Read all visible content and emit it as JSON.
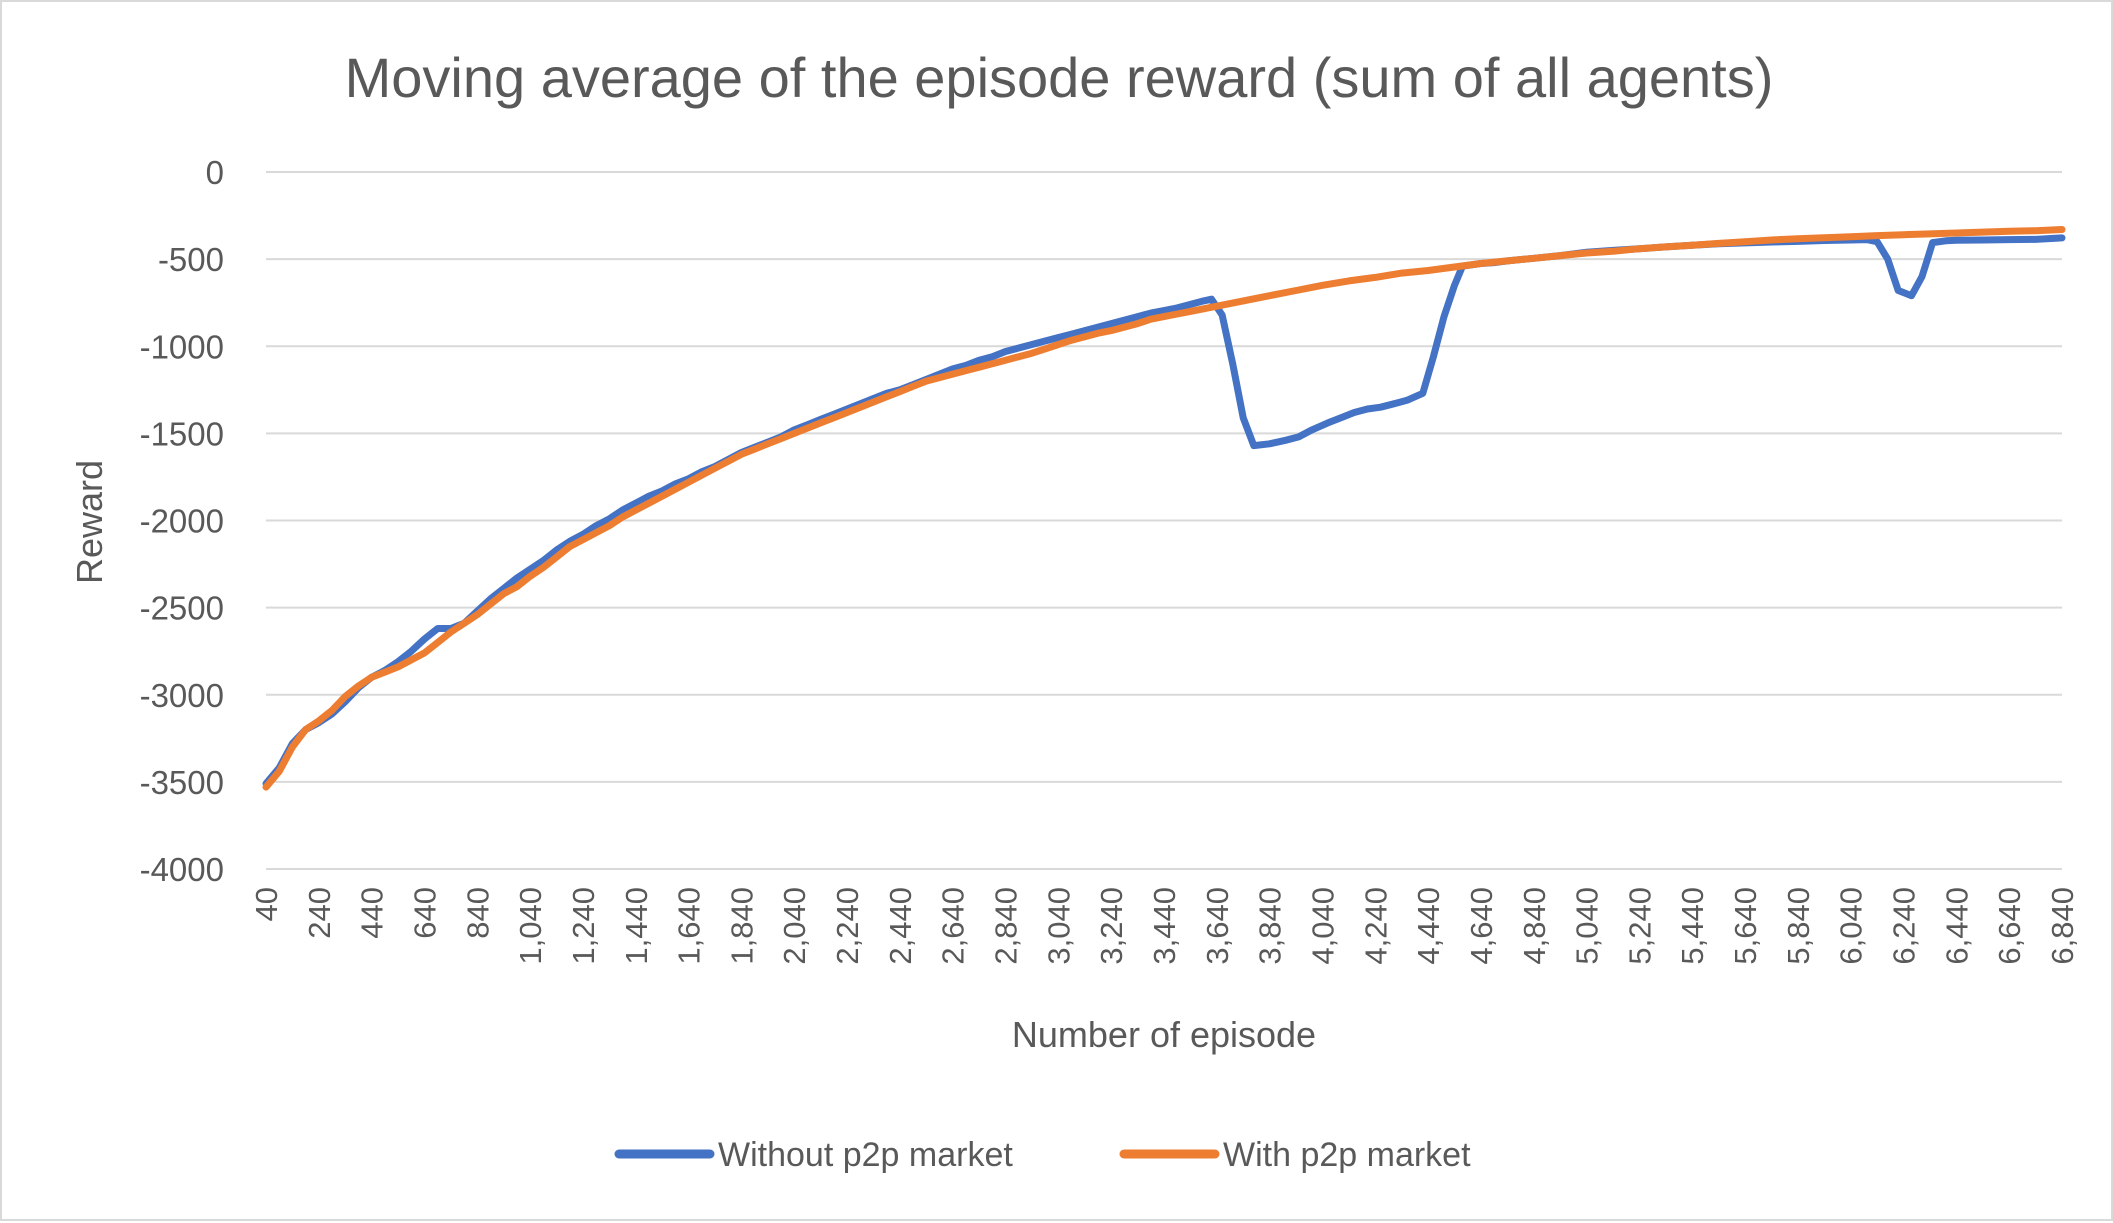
{
  "chart_data": {
    "type": "line",
    "title": "Moving average of the episode reward (sum of all agents)",
    "xlabel": "Number of episode",
    "ylabel": "Reward",
    "ylim": [
      -4000,
      0
    ],
    "yticks": [
      0,
      -500,
      -1000,
      -1500,
      -2000,
      -2500,
      -3000,
      -3500,
      -4000
    ],
    "grid": true,
    "legend_position": "bottom",
    "x_tick_labels": [
      "40",
      "240",
      "440",
      "640",
      "840",
      "1,040",
      "1,240",
      "1,440",
      "1,640",
      "1,840",
      "2,040",
      "2,240",
      "2,440",
      "2,640",
      "2,840",
      "3,040",
      "3,240",
      "3,440",
      "3,640",
      "3,840",
      "4,040",
      "4,240",
      "4,440",
      "4,640",
      "4,840",
      "5,040",
      "5,240",
      "5,440",
      "5,640",
      "5,840",
      "6,040",
      "6,240",
      "6,440",
      "6,640",
      "6,840"
    ],
    "xlim": [
      40,
      6840
    ],
    "series": [
      {
        "name": "Without p2p market",
        "color": "#4472c4",
        "points": [
          [
            40,
            -3510
          ],
          [
            90,
            -3420
          ],
          [
            140,
            -3280
          ],
          [
            190,
            -3200
          ],
          [
            240,
            -3160
          ],
          [
            290,
            -3110
          ],
          [
            340,
            -3040
          ],
          [
            390,
            -2960
          ],
          [
            440,
            -2900
          ],
          [
            490,
            -2860
          ],
          [
            540,
            -2810
          ],
          [
            590,
            -2750
          ],
          [
            640,
            -2680
          ],
          [
            690,
            -2620
          ],
          [
            740,
            -2620
          ],
          [
            790,
            -2590
          ],
          [
            840,
            -2520
          ],
          [
            890,
            -2450
          ],
          [
            940,
            -2390
          ],
          [
            990,
            -2330
          ],
          [
            1040,
            -2280
          ],
          [
            1090,
            -2230
          ],
          [
            1140,
            -2170
          ],
          [
            1190,
            -2120
          ],
          [
            1240,
            -2080
          ],
          [
            1290,
            -2030
          ],
          [
            1340,
            -1990
          ],
          [
            1390,
            -1940
          ],
          [
            1440,
            -1900
          ],
          [
            1490,
            -1860
          ],
          [
            1540,
            -1830
          ],
          [
            1590,
            -1790
          ],
          [
            1640,
            -1760
          ],
          [
            1690,
            -1720
          ],
          [
            1740,
            -1690
          ],
          [
            1790,
            -1650
          ],
          [
            1840,
            -1610
          ],
          [
            1890,
            -1580
          ],
          [
            1940,
            -1550
          ],
          [
            1990,
            -1520
          ],
          [
            2040,
            -1480
          ],
          [
            2090,
            -1450
          ],
          [
            2140,
            -1420
          ],
          [
            2190,
            -1390
          ],
          [
            2240,
            -1360
          ],
          [
            2290,
            -1330
          ],
          [
            2340,
            -1300
          ],
          [
            2390,
            -1270
          ],
          [
            2440,
            -1250
          ],
          [
            2490,
            -1220
          ],
          [
            2540,
            -1190
          ],
          [
            2590,
            -1160
          ],
          [
            2640,
            -1130
          ],
          [
            2690,
            -1110
          ],
          [
            2740,
            -1080
          ],
          [
            2790,
            -1060
          ],
          [
            2840,
            -1030
          ],
          [
            2890,
            -1010
          ],
          [
            2940,
            -990
          ],
          [
            2990,
            -970
          ],
          [
            3040,
            -950
          ],
          [
            3090,
            -930
          ],
          [
            3140,
            -910
          ],
          [
            3190,
            -890
          ],
          [
            3240,
            -870
          ],
          [
            3290,
            -850
          ],
          [
            3340,
            -830
          ],
          [
            3390,
            -810
          ],
          [
            3440,
            -795
          ],
          [
            3490,
            -780
          ],
          [
            3540,
            -760
          ],
          [
            3590,
            -740
          ],
          [
            3620,
            -730
          ],
          [
            3660,
            -820
          ],
          [
            3700,
            -1100
          ],
          [
            3740,
            -1410
          ],
          [
            3780,
            -1570
          ],
          [
            3840,
            -1560
          ],
          [
            3900,
            -1540
          ],
          [
            3950,
            -1520
          ],
          [
            4000,
            -1480
          ],
          [
            4060,
            -1440
          ],
          [
            4110,
            -1410
          ],
          [
            4160,
            -1380
          ],
          [
            4210,
            -1360
          ],
          [
            4260,
            -1350
          ],
          [
            4310,
            -1330
          ],
          [
            4360,
            -1310
          ],
          [
            4420,
            -1270
          ],
          [
            4460,
            -1060
          ],
          [
            4500,
            -830
          ],
          [
            4540,
            -650
          ],
          [
            4570,
            -540
          ],
          [
            4640,
            -525
          ],
          [
            4690,
            -520
          ],
          [
            4740,
            -510
          ],
          [
            4840,
            -495
          ],
          [
            4940,
            -480
          ],
          [
            5040,
            -460
          ],
          [
            5140,
            -450
          ],
          [
            5240,
            -440
          ],
          [
            5340,
            -430
          ],
          [
            5440,
            -420
          ],
          [
            5540,
            -412
          ],
          [
            5640,
            -407
          ],
          [
            5740,
            -402
          ],
          [
            5840,
            -398
          ],
          [
            5940,
            -393
          ],
          [
            6040,
            -390
          ],
          [
            6100,
            -388
          ],
          [
            6140,
            -400
          ],
          [
            6180,
            -500
          ],
          [
            6220,
            -680
          ],
          [
            6270,
            -710
          ],
          [
            6310,
            -600
          ],
          [
            6350,
            -405
          ],
          [
            6400,
            -395
          ],
          [
            6440,
            -392
          ],
          [
            6540,
            -390
          ],
          [
            6640,
            -388
          ],
          [
            6740,
            -387
          ],
          [
            6840,
            -378
          ]
        ]
      },
      {
        "name": "With p2p market",
        "color": "#ed7d31",
        "points": [
          [
            40,
            -3530
          ],
          [
            90,
            -3440
          ],
          [
            140,
            -3300
          ],
          [
            190,
            -3200
          ],
          [
            240,
            -3150
          ],
          [
            290,
            -3090
          ],
          [
            340,
            -3010
          ],
          [
            390,
            -2950
          ],
          [
            440,
            -2900
          ],
          [
            490,
            -2870
          ],
          [
            540,
            -2840
          ],
          [
            590,
            -2800
          ],
          [
            640,
            -2760
          ],
          [
            690,
            -2700
          ],
          [
            740,
            -2640
          ],
          [
            790,
            -2590
          ],
          [
            840,
            -2540
          ],
          [
            890,
            -2480
          ],
          [
            940,
            -2420
          ],
          [
            990,
            -2380
          ],
          [
            1040,
            -2320
          ],
          [
            1090,
            -2270
          ],
          [
            1140,
            -2210
          ],
          [
            1190,
            -2150
          ],
          [
            1240,
            -2110
          ],
          [
            1290,
            -2070
          ],
          [
            1340,
            -2030
          ],
          [
            1390,
            -1980
          ],
          [
            1440,
            -1940
          ],
          [
            1490,
            -1900
          ],
          [
            1540,
            -1860
          ],
          [
            1590,
            -1820
          ],
          [
            1640,
            -1780
          ],
          [
            1690,
            -1740
          ],
          [
            1740,
            -1700
          ],
          [
            1790,
            -1660
          ],
          [
            1840,
            -1620
          ],
          [
            1890,
            -1590
          ],
          [
            1940,
            -1560
          ],
          [
            1990,
            -1530
          ],
          [
            2040,
            -1500
          ],
          [
            2090,
            -1470
          ],
          [
            2140,
            -1440
          ],
          [
            2190,
            -1410
          ],
          [
            2240,
            -1380
          ],
          [
            2290,
            -1350
          ],
          [
            2340,
            -1320
          ],
          [
            2390,
            -1290
          ],
          [
            2440,
            -1260
          ],
          [
            2490,
            -1230
          ],
          [
            2540,
            -1200
          ],
          [
            2590,
            -1180
          ],
          [
            2640,
            -1160
          ],
          [
            2690,
            -1140
          ],
          [
            2740,
            -1120
          ],
          [
            2790,
            -1100
          ],
          [
            2840,
            -1080
          ],
          [
            2890,
            -1060
          ],
          [
            2940,
            -1040
          ],
          [
            2990,
            -1015
          ],
          [
            3040,
            -990
          ],
          [
            3090,
            -965
          ],
          [
            3140,
            -945
          ],
          [
            3190,
            -925
          ],
          [
            3240,
            -910
          ],
          [
            3290,
            -890
          ],
          [
            3340,
            -870
          ],
          [
            3390,
            -845
          ],
          [
            3440,
            -830
          ],
          [
            3490,
            -815
          ],
          [
            3540,
            -800
          ],
          [
            3590,
            -785
          ],
          [
            3640,
            -770
          ],
          [
            3740,
            -740
          ],
          [
            3840,
            -710
          ],
          [
            3940,
            -680
          ],
          [
            4040,
            -650
          ],
          [
            4140,
            -625
          ],
          [
            4240,
            -605
          ],
          [
            4340,
            -580
          ],
          [
            4440,
            -565
          ],
          [
            4540,
            -545
          ],
          [
            4640,
            -525
          ],
          [
            4740,
            -510
          ],
          [
            4840,
            -495
          ],
          [
            4940,
            -480
          ],
          [
            5040,
            -465
          ],
          [
            5140,
            -455
          ],
          [
            5240,
            -440
          ],
          [
            5340,
            -430
          ],
          [
            5440,
            -420
          ],
          [
            5540,
            -410
          ],
          [
            5640,
            -400
          ],
          [
            5740,
            -390
          ],
          [
            5840,
            -383
          ],
          [
            5940,
            -377
          ],
          [
            6040,
            -372
          ],
          [
            6140,
            -365
          ],
          [
            6240,
            -360
          ],
          [
            6340,
            -355
          ],
          [
            6440,
            -350
          ],
          [
            6540,
            -345
          ],
          [
            6640,
            -340
          ],
          [
            6740,
            -337
          ],
          [
            6840,
            -330
          ]
        ]
      }
    ]
  }
}
